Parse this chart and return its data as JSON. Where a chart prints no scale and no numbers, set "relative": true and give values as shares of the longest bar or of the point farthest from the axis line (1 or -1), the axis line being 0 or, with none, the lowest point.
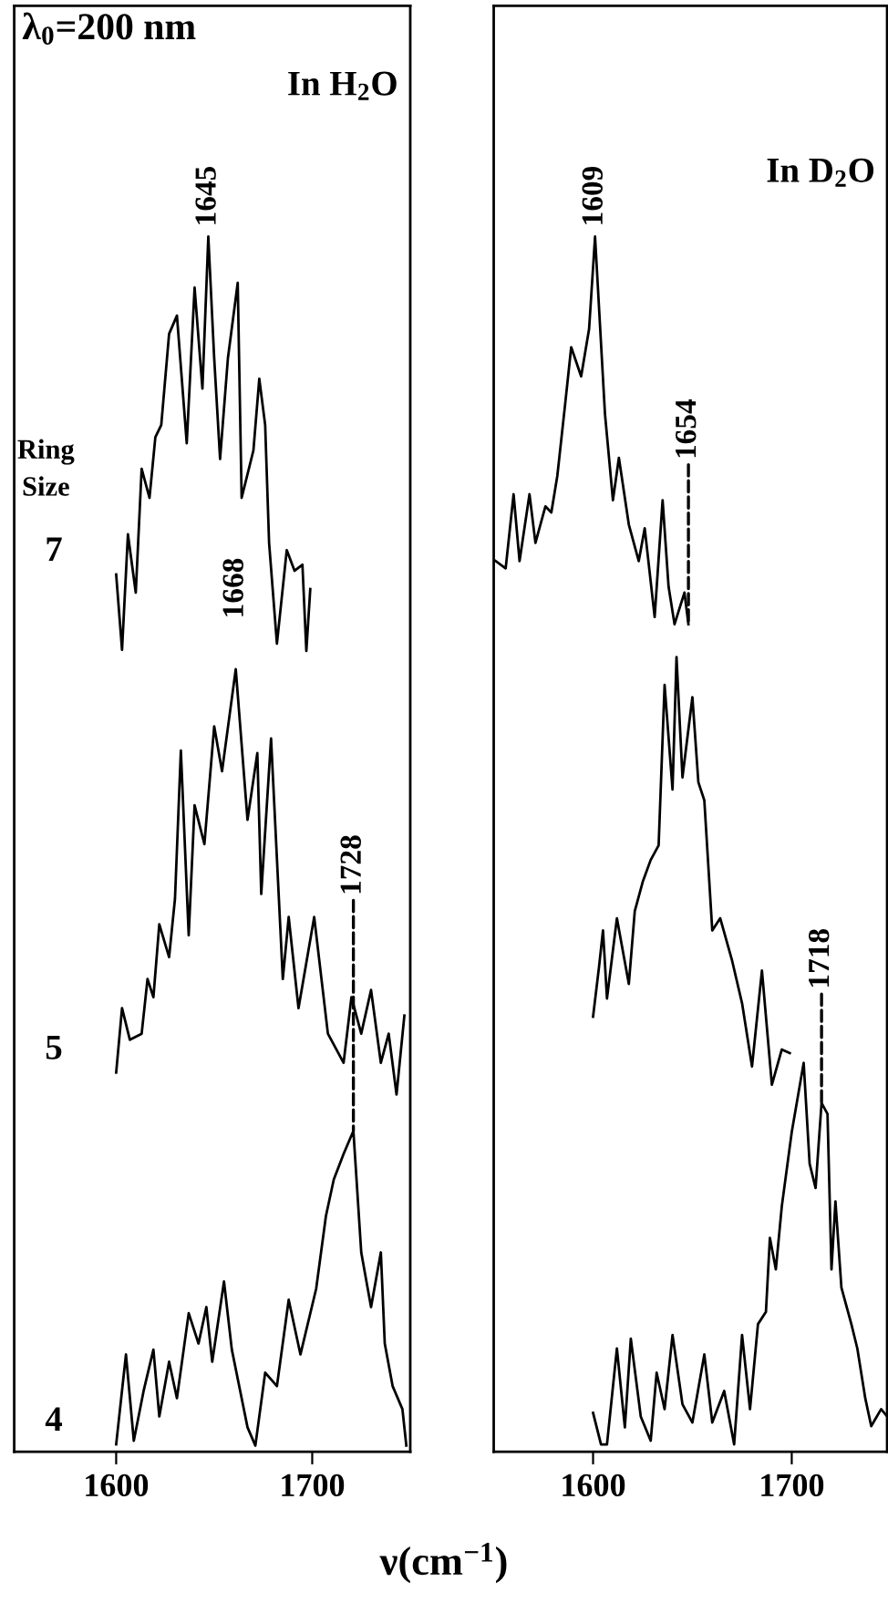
{
  "chart_data": [
    {
      "type": "line",
      "title": "λ$_{0}$=200 nm",
      "subtitle": "In H$_{2}$O",
      "legend_title": "Ring Size",
      "xlabel": "ν(cm$^{−1}$)",
      "relative": true,
      "xlim": [
        1548,
        1750
      ],
      "xticks": [
        1600,
        1700
      ],
      "tick_labels": "x",
      "legend": false,
      "grid": false,
      "marker": "none",
      "line_style": "solid",
      "annotations": [
        {
          "text": "1645",
          "x": 1647,
          "y": 1.0
        },
        {
          "text": "1668",
          "x": 1661,
          "y": 0.644
        },
        {
          "text": "1728",
          "x": 1721,
          "y": 0.264
        }
      ],
      "series": [
        {
          "name": "7",
          "color": "#000000",
          "x": [
            1600,
            1603,
            1606,
            1610,
            1613,
            1617,
            1620,
            1623,
            1627,
            1631,
            1636,
            1640,
            1644,
            1647,
            1650,
            1653,
            1657,
            1662,
            1664,
            1670,
            1673,
            1676,
            1678,
            1682,
            1687,
            1691,
            1695,
            1697,
            1699
          ],
          "values": [
            0.722,
            0.66,
            0.755,
            0.707,
            0.809,
            0.785,
            0.835,
            0.845,
            0.92,
            0.935,
            0.83,
            0.958,
            0.875,
            1.0,
            0.9,
            0.817,
            0.9,
            0.962,
            0.785,
            0.824,
            0.883,
            0.845,
            0.748,
            0.665,
            0.742,
            0.725,
            0.73,
            0.659,
            0.71
          ]
        },
        {
          "name": "5",
          "color": "#000000",
          "x": [
            1600,
            1603,
            1607,
            1613,
            1616,
            1619,
            1622,
            1627,
            1630,
            1633,
            1637,
            1640,
            1645,
            1650,
            1654,
            1661,
            1667,
            1672,
            1674,
            1679,
            1685,
            1688,
            1693,
            1701,
            1708,
            1716,
            1720,
            1725,
            1730,
            1735,
            1739,
            1743,
            1747
          ],
          "values": [
            0.312,
            0.365,
            0.339,
            0.344,
            0.389,
            0.374,
            0.434,
            0.407,
            0.455,
            0.577,
            0.425,
            0.532,
            0.5,
            0.597,
            0.56,
            0.644,
            0.52,
            0.575,
            0.459,
            0.587,
            0.389,
            0.44,
            0.365,
            0.44,
            0.344,
            0.32,
            0.374,
            0.344,
            0.38,
            0.32,
            0.344,
            0.294,
            0.359
          ]
        },
        {
          "name": "4",
          "color": "#000000",
          "x": [
            1600,
            1605,
            1609,
            1614,
            1619,
            1622,
            1627,
            1631,
            1637,
            1642,
            1646,
            1649,
            1655,
            1659,
            1667,
            1671,
            1676,
            1682,
            1688,
            1694,
            1702,
            1707,
            1711,
            1716,
            1721,
            1725,
            1730,
            1735,
            1737,
            1741,
            1746,
            1748
          ],
          "values": [
            0.006,
            0.08,
            0.009,
            0.05,
            0.084,
            0.029,
            0.074,
            0.044,
            0.114,
            0.089,
            0.119,
            0.074,
            0.14,
            0.084,
            0.02,
            0.005,
            0.065,
            0.054,
            0.125,
            0.08,
            0.134,
            0.194,
            0.224,
            0.245,
            0.264,
            0.164,
            0.119,
            0.164,
            0.089,
            0.054,
            0.035,
            0.005
          ]
        }
      ]
    },
    {
      "type": "line",
      "subtitle": "In D$_{2}$O",
      "relative": true,
      "xlim": [
        1550,
        1748
      ],
      "xticks": [
        1600,
        1700
      ],
      "tick_labels": "x",
      "legend": false,
      "grid": false,
      "marker": "none",
      "line_style": "solid",
      "annotations": [
        {
          "text": "1609",
          "x": 1601,
          "y": 1.0
        },
        {
          "text": "1654",
          "x": 1648,
          "y": 0.681
        },
        {
          "text": "1718",
          "x": 1715,
          "y": 0.287
        }
      ],
      "series": [
        {
          "color": "#000000",
          "x": [
            1551,
            1556,
            1560,
            1563,
            1568,
            1571,
            1576,
            1579,
            1582,
            1586,
            1589,
            1594,
            1598,
            1601,
            1606,
            1610,
            1613,
            1618,
            1623,
            1626,
            1631,
            1635,
            1638,
            1641,
            1646,
            1648
          ],
          "values": [
            0.733,
            0.727,
            0.788,
            0.733,
            0.788,
            0.748,
            0.778,
            0.773,
            0.803,
            0.863,
            0.909,
            0.885,
            0.924,
            1.0,
            0.854,
            0.783,
            0.818,
            0.763,
            0.733,
            0.76,
            0.687,
            0.783,
            0.712,
            0.681,
            0.707,
            0.681
          ]
        },
        {
          "color": "#000000",
          "x": [
            1600,
            1603,
            1605,
            1607,
            1612,
            1618,
            1621,
            1625,
            1629,
            1633,
            1636,
            1640,
            1642,
            1645,
            1650,
            1653,
            1656,
            1660,
            1664,
            1670,
            1675,
            1680,
            1685,
            1690,
            1695,
            1699
          ],
          "values": [
            0.358,
            0.399,
            0.429,
            0.373,
            0.439,
            0.385,
            0.445,
            0.469,
            0.487,
            0.499,
            0.631,
            0.545,
            0.654,
            0.555,
            0.621,
            0.551,
            0.536,
            0.429,
            0.439,
            0.404,
            0.369,
            0.317,
            0.396,
            0.302,
            0.331,
            0.328
          ]
        },
        {
          "color": "#000000",
          "x": [
            1600,
            1604,
            1607,
            1612,
            1616,
            1619,
            1624,
            1629,
            1632,
            1636,
            1640,
            1645,
            1650,
            1656,
            1660,
            1666,
            1671,
            1675,
            1679,
            1683,
            1687,
            1689,
            1692,
            1695,
            1700,
            1706,
            1709,
            1712,
            1715,
            1718,
            1720,
            1722,
            1725,
            1730,
            1733,
            1737,
            1740,
            1745,
            1748
          ],
          "values": [
            0.032,
            0.006,
            0.006,
            0.085,
            0.02,
            0.093,
            0.029,
            0.009,
            0.065,
            0.035,
            0.096,
            0.039,
            0.024,
            0.08,
            0.024,
            0.05,
            0.006,
            0.096,
            0.035,
            0.105,
            0.115,
            0.176,
            0.15,
            0.202,
            0.263,
            0.32,
            0.237,
            0.217,
            0.287,
            0.278,
            0.15,
            0.206,
            0.135,
            0.105,
            0.085,
            0.044,
            0.021,
            0.035,
            0.029
          ]
        }
      ]
    }
  ]
}
